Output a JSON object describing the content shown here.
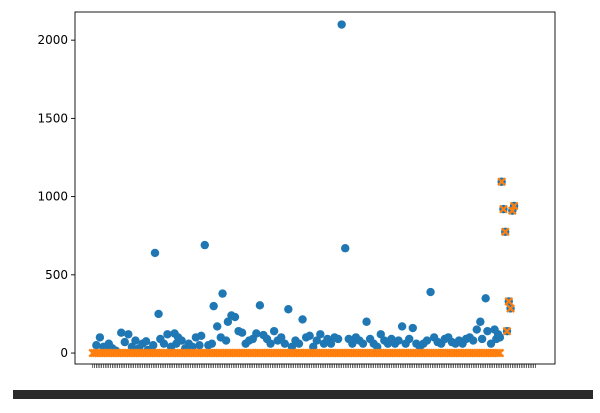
{
  "chart_data": {
    "type": "scatter",
    "title": "",
    "xlabel": "",
    "ylabel": "",
    "ylim": [
      -70,
      2180
    ],
    "x_count": 250,
    "yticks": [
      0,
      500,
      1000,
      1500,
      2000
    ],
    "x_tick_labels_note_text": "",
    "series": [
      {
        "marker": "circle",
        "color": "#1f77b4",
        "points": [
          [
            2,
            50
          ],
          [
            4,
            100
          ],
          [
            6,
            40
          ],
          [
            7,
            20
          ],
          [
            9,
            60
          ],
          [
            11,
            30
          ],
          [
            13,
            15
          ],
          [
            16,
            130
          ],
          [
            18,
            70
          ],
          [
            20,
            120
          ],
          [
            22,
            40
          ],
          [
            24,
            80
          ],
          [
            26,
            30
          ],
          [
            28,
            60
          ],
          [
            30,
            75
          ],
          [
            31,
            20
          ],
          [
            34,
            50
          ],
          [
            35,
            640
          ],
          [
            37,
            250
          ],
          [
            38,
            90
          ],
          [
            40,
            60
          ],
          [
            42,
            120
          ],
          [
            44,
            40
          ],
          [
            46,
            125
          ],
          [
            47,
            60
          ],
          [
            48,
            100
          ],
          [
            50,
            80
          ],
          [
            52,
            30
          ],
          [
            54,
            60
          ],
          [
            56,
            40
          ],
          [
            58,
            100
          ],
          [
            60,
            50
          ],
          [
            61,
            110
          ],
          [
            63,
            690
          ],
          [
            65,
            50
          ],
          [
            67,
            60
          ],
          [
            68,
            300
          ],
          [
            70,
            170
          ],
          [
            72,
            100
          ],
          [
            73,
            380
          ],
          [
            75,
            80
          ],
          [
            76,
            200
          ],
          [
            78,
            240
          ],
          [
            80,
            230
          ],
          [
            82,
            140
          ],
          [
            84,
            130
          ],
          [
            86,
            60
          ],
          [
            88,
            80
          ],
          [
            90,
            90
          ],
          [
            92,
            125
          ],
          [
            94,
            305
          ],
          [
            96,
            115
          ],
          [
            98,
            90
          ],
          [
            100,
            60
          ],
          [
            102,
            140
          ],
          [
            104,
            80
          ],
          [
            106,
            100
          ],
          [
            108,
            60
          ],
          [
            110,
            280
          ],
          [
            112,
            40
          ],
          [
            114,
            80
          ],
          [
            116,
            60
          ],
          [
            118,
            215
          ],
          [
            120,
            100
          ],
          [
            122,
            110
          ],
          [
            124,
            40
          ],
          [
            126,
            80
          ],
          [
            128,
            120
          ],
          [
            130,
            60
          ],
          [
            132,
            90
          ],
          [
            134,
            60
          ],
          [
            136,
            100
          ],
          [
            138,
            90
          ],
          [
            140,
            2100
          ],
          [
            142,
            670
          ],
          [
            144,
            90
          ],
          [
            146,
            60
          ],
          [
            148,
            100
          ],
          [
            150,
            80
          ],
          [
            152,
            60
          ],
          [
            154,
            200
          ],
          [
            156,
            90
          ],
          [
            158,
            60
          ],
          [
            160,
            40
          ],
          [
            162,
            120
          ],
          [
            164,
            80
          ],
          [
            166,
            60
          ],
          [
            168,
            90
          ],
          [
            170,
            60
          ],
          [
            172,
            80
          ],
          [
            174,
            170
          ],
          [
            176,
            60
          ],
          [
            178,
            90
          ],
          [
            180,
            160
          ],
          [
            182,
            60
          ],
          [
            184,
            40
          ],
          [
            186,
            60
          ],
          [
            188,
            80
          ],
          [
            190,
            390
          ],
          [
            192,
            100
          ],
          [
            194,
            70
          ],
          [
            196,
            60
          ],
          [
            198,
            90
          ],
          [
            200,
            100
          ],
          [
            202,
            70
          ],
          [
            204,
            60
          ],
          [
            206,
            80
          ],
          [
            208,
            60
          ],
          [
            210,
            90
          ],
          [
            212,
            100
          ],
          [
            214,
            80
          ],
          [
            216,
            150
          ],
          [
            218,
            200
          ],
          [
            219,
            90
          ],
          [
            221,
            350
          ],
          [
            222,
            140
          ],
          [
            224,
            60
          ],
          [
            226,
            150
          ],
          [
            227,
            90
          ],
          [
            228,
            120
          ],
          [
            229,
            100
          ],
          [
            230,
            1095
          ],
          [
            231,
            920
          ],
          [
            232,
            775
          ],
          [
            233,
            140
          ],
          [
            234,
            330
          ],
          [
            235,
            285
          ],
          [
            236,
            910
          ],
          [
            237,
            940
          ]
        ]
      },
      {
        "marker": "x",
        "color": "#ff7f0e",
        "points": [
          [
            230,
            1095
          ],
          [
            231,
            920
          ],
          [
            232,
            775
          ],
          [
            233,
            140
          ],
          [
            234,
            330
          ],
          [
            235,
            285
          ],
          [
            236,
            910
          ],
          [
            237,
            940
          ]
        ],
        "baseline_value": 0,
        "baseline_count": 230
      }
    ]
  }
}
